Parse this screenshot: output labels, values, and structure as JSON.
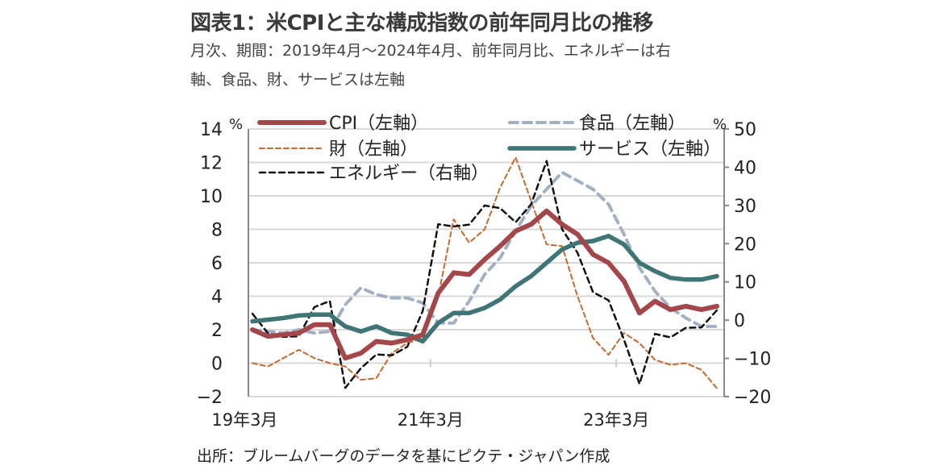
{
  "title": "図表1：米CPIと主な構成指数の前年同月比の推移",
  "subtitle_line1": "月次、期間：2019年4月～2024年4月、前年同月比、エネルギーは右",
  "subtitle_line2": "軸、食品、財、サービスは左軸",
  "source": "出所：ブルームバーグのデータを基にピクテ・ジャパン作成",
  "chart_data": {
    "type": "line",
    "left_axis": {
      "unit": "%",
      "ylim": [
        -2,
        14
      ],
      "ticks": [
        "−2",
        "0",
        "2",
        "4",
        "6",
        "8",
        "10",
        "12",
        "14"
      ],
      "tick_values": [
        -2,
        0,
        2,
        4,
        6,
        8,
        10,
        12,
        14
      ]
    },
    "right_axis": {
      "unit": "%",
      "ylim": [
        -20,
        50
      ],
      "ticks": [
        "−20",
        "−10",
        "0",
        "10",
        "20",
        "30",
        "40",
        "50"
      ],
      "tick_values": [
        -20,
        -10,
        0,
        10,
        20,
        30,
        40,
        50
      ]
    },
    "x_ticks": [
      {
        "label": "19年3月",
        "date": "2019-03"
      },
      {
        "label": "21年3月",
        "date": "2021-03"
      },
      {
        "label": "23年3月",
        "date": "2023-03"
      }
    ],
    "grid": true,
    "legend_placement": "top",
    "dates": [
      "2019-04",
      "2019-06",
      "2019-08",
      "2019-10",
      "2019-12",
      "2020-02",
      "2020-04",
      "2020-06",
      "2020-08",
      "2020-10",
      "2020-12",
      "2021-02",
      "2021-04",
      "2021-06",
      "2021-08",
      "2021-10",
      "2021-12",
      "2022-02",
      "2022-04",
      "2022-06",
      "2022-08",
      "2022-10",
      "2022-12",
      "2023-02",
      "2023-04",
      "2023-06",
      "2023-08",
      "2023-10",
      "2023-12",
      "2024-02",
      "2024-04"
    ],
    "series": [
      {
        "name": "CPI（左軸）",
        "axis": "left",
        "color": "#a3474b",
        "style": "solid",
        "values": [
          2.0,
          1.6,
          1.7,
          1.8,
          2.3,
          2.3,
          0.3,
          0.6,
          1.3,
          1.2,
          1.4,
          1.7,
          4.2,
          5.4,
          5.3,
          6.2,
          7.0,
          7.9,
          8.3,
          9.1,
          8.3,
          7.7,
          6.5,
          6.0,
          4.9,
          3.0,
          3.7,
          3.2,
          3.4,
          3.2,
          3.4
        ]
      },
      {
        "name": "食品（左軸）",
        "axis": "left",
        "color": "#a3b0c2",
        "style": "dashed",
        "values": [
          2.0,
          1.9,
          1.8,
          2.0,
          1.8,
          1.9,
          3.5,
          4.5,
          4.1,
          3.9,
          3.9,
          3.6,
          2.4,
          2.4,
          3.7,
          5.3,
          6.3,
          7.9,
          9.4,
          10.4,
          11.4,
          10.9,
          10.4,
          9.5,
          7.7,
          5.7,
          4.3,
          3.3,
          2.7,
          2.2,
          2.2
        ]
      },
      {
        "name": "財（左軸）",
        "axis": "left",
        "color": "#c8692c",
        "style": "dotted",
        "values": [
          0.0,
          -0.2,
          0.3,
          0.8,
          0.3,
          0.0,
          -0.2,
          -1.0,
          -0.9,
          0.6,
          1.2,
          1.5,
          4.0,
          8.6,
          7.2,
          8.0,
          10.5,
          12.3,
          9.7,
          7.1,
          7.0,
          4.0,
          1.5,
          0.5,
          1.8,
          1.2,
          0.2,
          -0.1,
          0.0,
          -0.4,
          -1.5
        ]
      },
      {
        "name": "サービス（左軸）",
        "axis": "left",
        "color": "#3f7575",
        "style": "solid",
        "values": [
          2.5,
          2.6,
          2.7,
          2.85,
          2.9,
          2.9,
          2.2,
          1.9,
          2.2,
          1.8,
          1.7,
          1.3,
          2.4,
          3.0,
          3.0,
          3.3,
          3.8,
          4.6,
          5.2,
          6.0,
          6.8,
          7.2,
          7.3,
          7.6,
          7.1,
          6.0,
          5.5,
          5.1,
          5.0,
          5.0,
          5.2
        ]
      },
      {
        "name": "エネルギー（右軸）",
        "axis": "right",
        "color": "#111111",
        "style": "dashed",
        "values": [
          1.7,
          -3.4,
          -4.4,
          -4.2,
          3.4,
          5.0,
          -17.7,
          -12.6,
          -9.0,
          -9.2,
          -7.0,
          2.4,
          25.1,
          24.5,
          25.0,
          30.0,
          29.3,
          25.6,
          30.3,
          41.6,
          23.8,
          17.6,
          7.3,
          5.2,
          -5.1,
          -16.7,
          -3.6,
          -4.5,
          -2.0,
          -1.9,
          2.6
        ]
      }
    ]
  }
}
